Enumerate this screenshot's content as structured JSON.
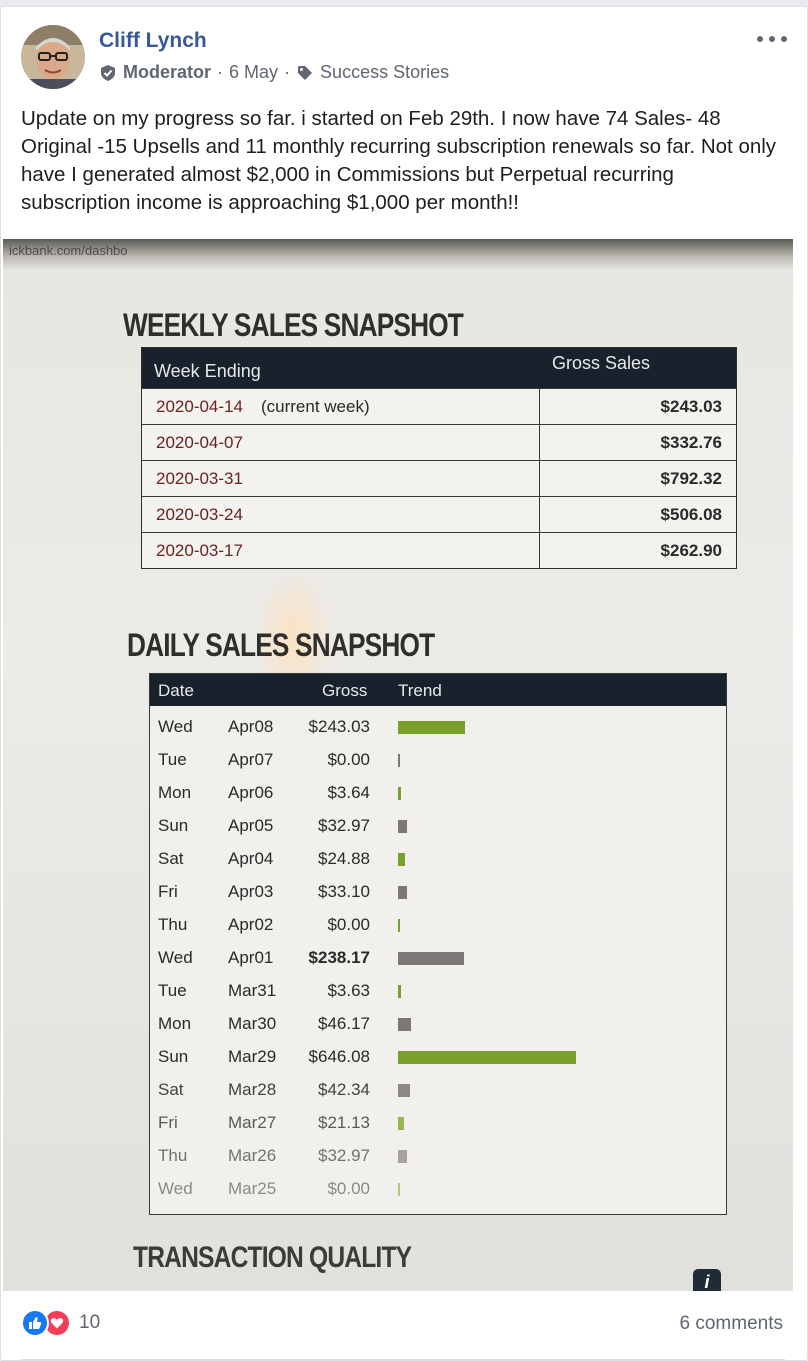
{
  "post": {
    "author": "Cliff Lynch",
    "role": "Moderator",
    "date": "6 May",
    "topic": "Success Stories",
    "text": "Update on my progress so far. i started on Feb 29th. I now have 74 Sales- 48 Original -15 Upsells and 11 monthly recurring subscription renewals so far. Not only have I generated almost $2,000 in Commissions but Perpetual recurring subscription income is approaching $1,000 per month!!"
  },
  "photo": {
    "url_fragment": "ickbank.com/dashbo",
    "weekly_title": "WEEKLY SALES SNAPSHOT",
    "weekly_headers": [
      "Week Ending",
      "Gross Sales"
    ],
    "weekly_rows": [
      {
        "week": "2020-04-14",
        "note": "(current week)",
        "gross": "$243.03"
      },
      {
        "week": "2020-04-07",
        "note": "",
        "gross": "$332.76"
      },
      {
        "week": "2020-03-31",
        "note": "",
        "gross": "$792.32"
      },
      {
        "week": "2020-03-24",
        "note": "",
        "gross": "$506.08"
      },
      {
        "week": "2020-03-17",
        "note": "",
        "gross": "$262.90"
      }
    ],
    "daily_title": "DAILY SALES SNAPSHOT",
    "daily_headers": [
      "Date",
      "Gross",
      "Trend"
    ],
    "daily_rows": [
      {
        "day": "Wed",
        "date": "Apr08",
        "gross": "$243.03",
        "trend": 243.03,
        "color": "#7aa02c"
      },
      {
        "day": "Tue",
        "date": "Apr07",
        "gross": "$0.00",
        "trend": 0,
        "color": "#7e7777"
      },
      {
        "day": "Mon",
        "date": "Apr06",
        "gross": "$3.64",
        "trend": 3.64,
        "color": "#7aa02c"
      },
      {
        "day": "Sun",
        "date": "Apr05",
        "gross": "$32.97",
        "trend": 32.97,
        "color": "#7e7777"
      },
      {
        "day": "Sat",
        "date": "Apr04",
        "gross": "$24.88",
        "trend": 24.88,
        "color": "#7aa02c"
      },
      {
        "day": "Fri",
        "date": "Apr03",
        "gross": "$33.10",
        "trend": 33.1,
        "color": "#7e7777"
      },
      {
        "day": "Thu",
        "date": "Apr02",
        "gross": "$0.00",
        "trend": 0,
        "color": "#7aa02c"
      },
      {
        "day": "Wed",
        "date": "Apr01",
        "gross": "$238.17",
        "trend": 238.17,
        "color": "#7e7777"
      },
      {
        "day": "Tue",
        "date": "Mar31",
        "gross": "$3.63",
        "trend": 3.63,
        "color": "#7aa02c"
      },
      {
        "day": "Mon",
        "date": "Mar30",
        "gross": "$46.17",
        "trend": 46.17,
        "color": "#7e7777"
      },
      {
        "day": "Sun",
        "date": "Mar29",
        "gross": "$646.08",
        "trend": 646.08,
        "color": "#7aa02c"
      },
      {
        "day": "Sat",
        "date": "Mar28",
        "gross": "$42.34",
        "trend": 42.34,
        "color": "#7e7777"
      },
      {
        "day": "Fri",
        "date": "Mar27",
        "gross": "$21.13",
        "trend": 21.13,
        "color": "#7aa02c"
      },
      {
        "day": "Thu",
        "date": "Mar26",
        "gross": "$32.97",
        "trend": 32.97,
        "color": "#7e7777"
      },
      {
        "day": "Wed",
        "date": "Mar25",
        "gross": "$0.00",
        "trend": 0,
        "color": "#7aa02c"
      }
    ],
    "quality_title": "TRANSACTION QUALITY",
    "info_glyph": "i"
  },
  "footer": {
    "reaction_count": "10",
    "comments": "6 comments"
  },
  "colors": {
    "link": "#385898",
    "meta": "#606770",
    "like": "#1877f2",
    "love": "#f33e58"
  }
}
